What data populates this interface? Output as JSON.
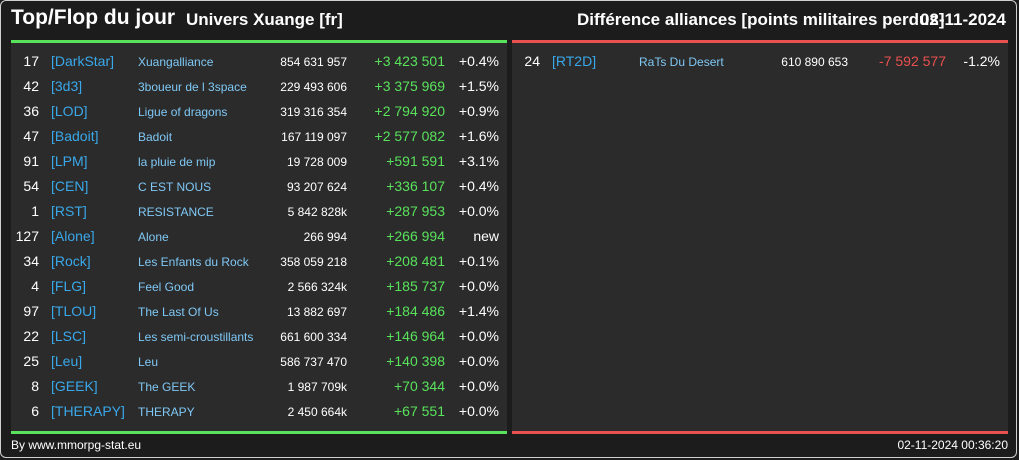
{
  "header": {
    "title": "Top/Flop du jour",
    "univers": "Univers Xuange [fr]",
    "diff_label": "Différence alliances [points militaires perdus]",
    "date": "02-11-2024"
  },
  "top": [
    {
      "rank": "17",
      "tag": "[DarkStar]",
      "name": "Xuangalliance",
      "total": "854 631 957",
      "diff": "+3 423 501",
      "pct": "+0.4%"
    },
    {
      "rank": "42",
      "tag": "[3d3]",
      "name": "3boueur de l 3space",
      "total": "229 493 606",
      "diff": "+3 375 969",
      "pct": "+1.5%"
    },
    {
      "rank": "36",
      "tag": "[LOD]",
      "name": "Ligue of dragons",
      "total": "319 316 354",
      "diff": "+2 794 920",
      "pct": "+0.9%"
    },
    {
      "rank": "47",
      "tag": "[Badoit]",
      "name": "Badoit",
      "total": "167 119 097",
      "diff": "+2 577 082",
      "pct": "+1.6%"
    },
    {
      "rank": "91",
      "tag": "[LPM]",
      "name": "la pluie de mip",
      "total": "19 728 009",
      "diff": "+591 591",
      "pct": "+3.1%"
    },
    {
      "rank": "54",
      "tag": "[CEN]",
      "name": "C EST NOUS",
      "total": "93 207 624",
      "diff": "+336 107",
      "pct": "+0.4%"
    },
    {
      "rank": "1",
      "tag": "[RST]",
      "name": "RESISTANCE",
      "total": "5 842 828k",
      "diff": "+287 953",
      "pct": "+0.0%"
    },
    {
      "rank": "127",
      "tag": "[Alone]",
      "name": "Alone",
      "total": "266 994",
      "diff": "+266 994",
      "pct": "new"
    },
    {
      "rank": "34",
      "tag": "[Rock]",
      "name": "Les Enfants du Rock",
      "total": "358 059 218",
      "diff": "+208 481",
      "pct": "+0.1%"
    },
    {
      "rank": "4",
      "tag": "[FLG]",
      "name": "Feel Good",
      "total": "2 566 324k",
      "diff": "+185 737",
      "pct": "+0.0%"
    },
    {
      "rank": "97",
      "tag": "[TLOU]",
      "name": "The Last Of Us",
      "total": "13 882 697",
      "diff": "+184 486",
      "pct": "+1.4%"
    },
    {
      "rank": "22",
      "tag": "[LSC]",
      "name": "Les semi-croustillants",
      "total": "661 600 334",
      "diff": "+146 964",
      "pct": "+0.0%"
    },
    {
      "rank": "25",
      "tag": "[Leu]",
      "name": "Leu",
      "total": "586 737 470",
      "diff": "+140 398",
      "pct": "+0.0%"
    },
    {
      "rank": "8",
      "tag": "[GEEK]",
      "name": "The GEEK",
      "total": "1 987 709k",
      "diff": "+70 344",
      "pct": "+0.0%"
    },
    {
      "rank": "6",
      "tag": "[THERAPY]",
      "name": "THERAPY",
      "total": "2 450 664k",
      "diff": "+67 551",
      "pct": "+0.0%"
    }
  ],
  "flop": [
    {
      "rank": "24",
      "tag": "[RT2D]",
      "name": "RaTs Du Desert",
      "total": "610 890 653",
      "diff": "-7 592 577",
      "pct": "-1.2%"
    }
  ],
  "colors": {
    "positive": "#59e25c",
    "negative": "#e8514f",
    "tag": "#39a8ea",
    "name": "#7fc8f5"
  },
  "footer": {
    "source": "By www.mmorpg-stat.eu",
    "timestamp": "02-11-2024 00:36:20"
  }
}
